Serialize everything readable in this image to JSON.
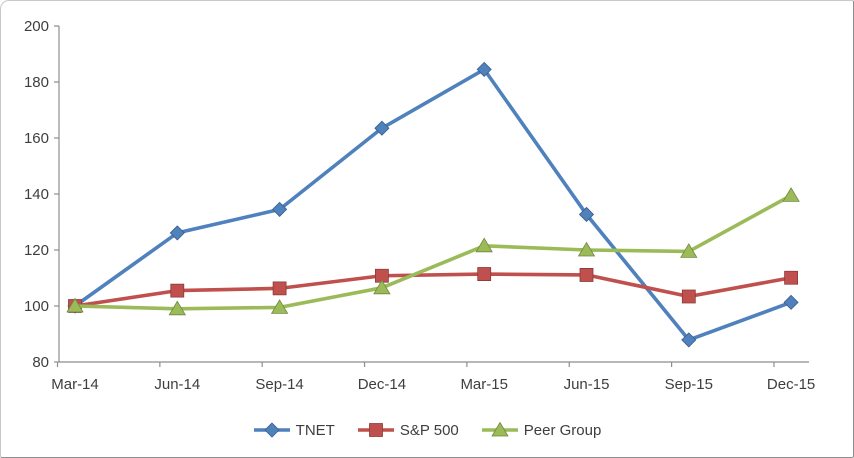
{
  "chart_data": {
    "type": "line",
    "title": "",
    "xlabel": "",
    "ylabel": "",
    "categories": [
      "Mar-14",
      "Jun-14",
      "Sep-14",
      "Dec-14",
      "Mar-15",
      "Jun-15",
      "Sep-15",
      "Dec-15"
    ],
    "series": [
      {
        "name": "TNET",
        "color": "#4F81BD",
        "marker": "diamond",
        "values": [
          100,
          126.1,
          134.5,
          163.5,
          184.5,
          132.7,
          87.9,
          101.3
        ]
      },
      {
        "name": "S&P 500",
        "color": "#C0504D",
        "marker": "square",
        "values": [
          100,
          105.5,
          106.3,
          110.8,
          111.4,
          111.1,
          103.4,
          110.1
        ]
      },
      {
        "name": "Peer Group",
        "color": "#9BBB59",
        "marker": "triangle",
        "values": [
          100,
          99.0,
          99.5,
          106.5,
          121.5,
          120.0,
          119.5,
          139.5
        ]
      }
    ],
    "ylim": [
      80,
      200
    ],
    "yticks": [
      80,
      100,
      120,
      140,
      160,
      180,
      200
    ],
    "grid": false,
    "legend_position": "bottom",
    "colors": {
      "axis": "#8e8e8e",
      "tick_label": "#3e3e3e",
      "chart_border": "#c9c9c9",
      "background": "#ffffff"
    }
  }
}
